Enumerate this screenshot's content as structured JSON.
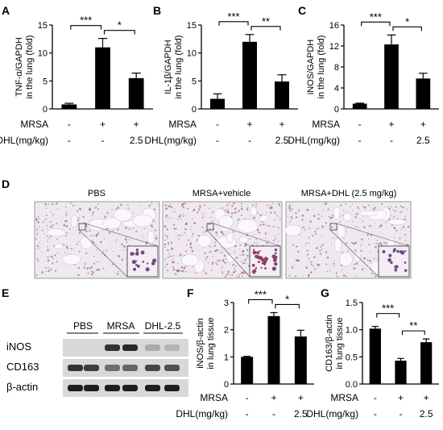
{
  "charts": {
    "A": {
      "panel": "A",
      "ylabel": [
        "TNF-α/GAPDH",
        "in the lung (fold)"
      ],
      "yticks": [
        "0",
        "5",
        "10",
        "15"
      ],
      "chart_data_ref": 0,
      "sig": [
        {
          "from": 0,
          "to": 1,
          "label": "***"
        },
        {
          "from": 1,
          "to": 2,
          "label": "*"
        }
      ]
    },
    "B": {
      "panel": "B",
      "ylabel": [
        "IL-1β/GAPDH",
        "in the lung (fold)"
      ],
      "yticks": [
        "0",
        "5",
        "10",
        "15"
      ],
      "chart_data_ref": 1,
      "sig": [
        {
          "from": 0,
          "to": 1,
          "label": "***"
        },
        {
          "from": 1,
          "to": 2,
          "label": "**"
        }
      ]
    },
    "C": {
      "panel": "C",
      "ylabel": [
        "iNOS/GAPDH",
        "in the lung (fold)"
      ],
      "yticks": [
        "0",
        "4",
        "8",
        "12",
        "16"
      ],
      "chart_data_ref": 2,
      "sig": [
        {
          "from": 0,
          "to": 1,
          "label": "***"
        },
        {
          "from": 1,
          "to": 2,
          "label": "*"
        }
      ]
    },
    "F": {
      "panel": "F",
      "ylabel": [
        "iNOS/β-actin",
        "in lung tissue"
      ],
      "yticks": [
        "0",
        "1",
        "2",
        "3"
      ],
      "chart_data_ref": 3,
      "sig": [
        {
          "from": 0,
          "to": 1,
          "label": "***"
        },
        {
          "from": 1,
          "to": 2,
          "label": "*"
        }
      ]
    },
    "G": {
      "panel": "G",
      "ylabel": [
        "CD163/β-actin",
        "in lung tissue"
      ],
      "yticks": [
        "0.0",
        "0.5",
        "1.0",
        "1.5"
      ],
      "chart_data_ref": 4,
      "sig": [
        {
          "from": 0,
          "to": 1,
          "label": "***"
        },
        {
          "from": 1,
          "to": 2,
          "label": "**"
        }
      ]
    }
  },
  "row_labels": {
    "mrsa": "MRSA",
    "dhl": "DHL(mg/kg)",
    "mrsa_vals": [
      "-",
      "+",
      "+"
    ],
    "dhl_vals": [
      "-",
      "-",
      "2.5"
    ]
  },
  "panel_D": {
    "label": "D",
    "titles": [
      "PBS",
      "MRSA+vehicle",
      "MRSA+DHL  (2.5 mg/kg)"
    ]
  },
  "panel_E": {
    "label": "E",
    "groups": [
      "PBS",
      "MRSA",
      "DHL-2.5"
    ],
    "bands": [
      "iNOS",
      "CD163",
      "β-actin"
    ]
  },
  "colors": {
    "bar": "#000000",
    "stain_bg": "#efe9ef",
    "stain_dot": "#6f4a86",
    "stain_red": "#9c3b55"
  },
  "chart_data": [
    {
      "type": "bar",
      "title": "",
      "categories": [
        "PBS",
        "MRSA",
        "MRSA+DHL 2.5"
      ],
      "values": [
        0.8,
        11.0,
        5.5
      ],
      "errors": [
        0.2,
        1.6,
        0.9
      ],
      "ylim": [
        0,
        15
      ],
      "ylabel": "TNF-α/GAPDH in the lung (fold)"
    },
    {
      "type": "bar",
      "title": "",
      "categories": [
        "PBS",
        "MRSA",
        "MRSA+DHL 2.5"
      ],
      "values": [
        1.8,
        12.0,
        4.9
      ],
      "errors": [
        0.9,
        1.3,
        1.2
      ],
      "ylim": [
        0,
        15
      ],
      "ylabel": "IL-1β/GAPDH in the lung (fold)"
    },
    {
      "type": "bar",
      "title": "",
      "categories": [
        "PBS",
        "MRSA",
        "MRSA+DHL 2.5"
      ],
      "values": [
        1.0,
        12.3,
        5.8
      ],
      "errors": [
        0.1,
        1.8,
        1.0
      ],
      "ylim": [
        0,
        16
      ],
      "ylabel": "iNOS/GAPDH in the lung (fold)"
    },
    {
      "type": "bar",
      "title": "",
      "categories": [
        "PBS",
        "MRSA",
        "MRSA+DHL 2.5"
      ],
      "values": [
        1.0,
        2.5,
        1.75
      ],
      "errors": [
        0.02,
        0.13,
        0.23
      ],
      "ylim": [
        0,
        3
      ],
      "ylabel": "iNOS/β-actin in lung tissue"
    },
    {
      "type": "bar",
      "title": "",
      "categories": [
        "PBS",
        "MRSA",
        "MRSA+DHL 2.5"
      ],
      "values": [
        1.02,
        0.43,
        0.77
      ],
      "errors": [
        0.04,
        0.04,
        0.06
      ],
      "ylim": [
        0,
        1.5
      ],
      "ylabel": "CD163/β-actin in lung tissue"
    }
  ]
}
